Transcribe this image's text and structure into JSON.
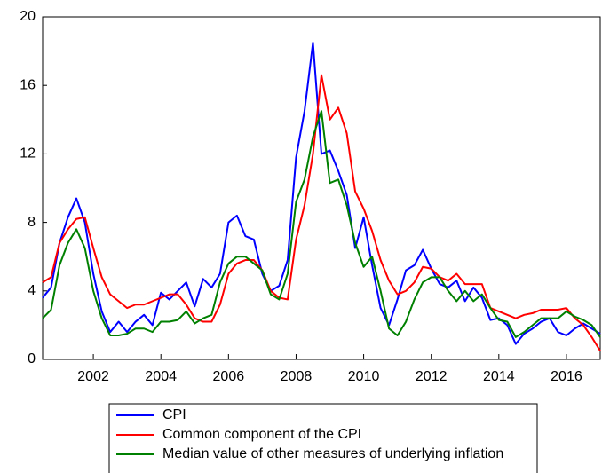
{
  "chart_data": {
    "type": "line",
    "x": [
      2000.5,
      2000.75,
      2001,
      2001.25,
      2001.5,
      2001.75,
      2002,
      2002.25,
      2002.5,
      2002.75,
      2003,
      2003.25,
      2003.5,
      2003.75,
      2004,
      2004.25,
      2004.5,
      2004.75,
      2005,
      2005.25,
      2005.5,
      2005.75,
      2006,
      2006.25,
      2006.5,
      2006.75,
      2007,
      2007.25,
      2007.5,
      2007.75,
      2008,
      2008.25,
      2008.5,
      2008.75,
      2009,
      2009.25,
      2009.5,
      2009.75,
      2010,
      2010.25,
      2010.5,
      2010.75,
      2011,
      2011.25,
      2011.5,
      2011.75,
      2012,
      2012.25,
      2012.5,
      2012.75,
      2013,
      2013.25,
      2013.5,
      2013.75,
      2014,
      2014.25,
      2014.5,
      2014.75,
      2015,
      2015.25,
      2015.5,
      2015.75,
      2016,
      2016.25,
      2016.5,
      2016.75,
      2017
    ],
    "series": [
      {
        "name": "CPI",
        "color": "#0000ff",
        "values": [
          3.6,
          4.2,
          6.8,
          8.3,
          9.4,
          8.0,
          5.0,
          2.8,
          1.6,
          2.2,
          1.6,
          2.2,
          2.6,
          2.0,
          3.9,
          3.5,
          4.0,
          4.5,
          3.1,
          4.7,
          4.2,
          5.0,
          8.0,
          8.4,
          7.2,
          7.0,
          5.0,
          4.0,
          4.3,
          5.8,
          11.8,
          14.5,
          18.5,
          12.0,
          12.2,
          11.0,
          9.6,
          6.5,
          8.3,
          5.5,
          3.0,
          2.0,
          3.5,
          5.2,
          5.5,
          6.4,
          5.3,
          4.4,
          4.2,
          4.6,
          3.4,
          4.2,
          3.6,
          2.3,
          2.4,
          2.0,
          0.9,
          1.5,
          1.8,
          2.2,
          2.4,
          1.6,
          1.4,
          1.8,
          2.1,
          1.8,
          1.5
        ]
      },
      {
        "name": "Common component of the CPI",
        "color": "#ff0000",
        "values": [
          4.5,
          4.8,
          6.8,
          7.6,
          8.2,
          8.3,
          6.5,
          4.8,
          3.8,
          3.4,
          3.0,
          3.2,
          3.2,
          3.4,
          3.6,
          3.8,
          3.8,
          3.2,
          2.4,
          2.2,
          2.2,
          3.2,
          5.0,
          5.6,
          5.8,
          5.8,
          5.2,
          4.0,
          3.6,
          3.5,
          7.0,
          9.0,
          12.0,
          16.6,
          14.0,
          14.7,
          13.2,
          9.8,
          8.8,
          7.5,
          5.8,
          4.6,
          3.8,
          4.0,
          4.5,
          5.4,
          5.3,
          4.8,
          4.6,
          5.0,
          4.4,
          4.4,
          4.4,
          3.0,
          2.8,
          2.6,
          2.4,
          2.6,
          2.7,
          2.9,
          2.9,
          2.9,
          3.0,
          2.4,
          2.0,
          1.3,
          0.5
        ]
      },
      {
        "name": "Median value of other measures of underlying inflation",
        "color": "#008000",
        "values": [
          2.4,
          2.9,
          5.5,
          6.8,
          7.6,
          6.5,
          4.0,
          2.4,
          1.4,
          1.4,
          1.5,
          1.8,
          1.8,
          1.6,
          2.2,
          2.2,
          2.3,
          2.8,
          2.1,
          2.4,
          2.6,
          4.5,
          5.6,
          6.0,
          6.0,
          5.6,
          5.2,
          3.8,
          3.5,
          5.0,
          9.2,
          10.5,
          13.0,
          14.5,
          10.3,
          10.5,
          9.0,
          6.8,
          5.4,
          6.0,
          4.0,
          1.8,
          1.4,
          2.2,
          3.5,
          4.5,
          4.8,
          4.8,
          4.0,
          3.4,
          4.0,
          3.4,
          3.8,
          3.0,
          2.3,
          2.2,
          1.3,
          1.6,
          2.0,
          2.4,
          2.4,
          2.4,
          2.8,
          2.5,
          2.3,
          2.0,
          1.3
        ]
      }
    ],
    "xlim": [
      2000.5,
      2017
    ],
    "xticks": [
      2002,
      2004,
      2006,
      2008,
      2010,
      2012,
      2014,
      2016
    ],
    "ylim": [
      0,
      20
    ],
    "yticks": [
      0,
      4,
      8,
      12,
      16,
      20
    ],
    "grid": false,
    "legend": "bottom"
  }
}
